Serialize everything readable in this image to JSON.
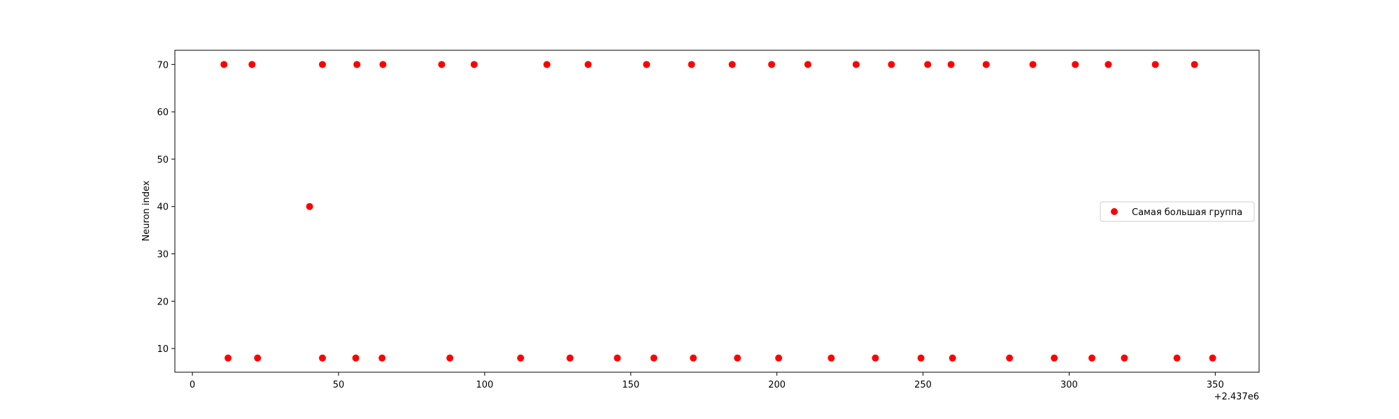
{
  "chart_data": {
    "type": "scatter",
    "title": "",
    "xlabel": "",
    "ylabel": "Neuron index",
    "x_offset_label": "+2.437e6",
    "xlim": [
      -6,
      365
    ],
    "ylim": [
      5,
      73
    ],
    "xticks": [
      0,
      50,
      100,
      150,
      200,
      250,
      300,
      350
    ],
    "xtick_labels": [
      "0",
      "50",
      "100",
      "150",
      "200",
      "250",
      "300",
      "350"
    ],
    "yticks": [
      10,
      20,
      30,
      40,
      50,
      60,
      70
    ],
    "ytick_labels": [
      "10",
      "20",
      "30",
      "40",
      "50",
      "60",
      "70"
    ],
    "grid": false,
    "legend_position": "center right",
    "series": [
      {
        "name": "Самая большая группа",
        "color": "#ff0000",
        "marker": "circle",
        "points": [
          [
            10.8,
            70
          ],
          [
            20.4,
            70
          ],
          [
            44.5,
            70
          ],
          [
            56.3,
            70
          ],
          [
            65.2,
            70
          ],
          [
            85.3,
            70
          ],
          [
            96.4,
            70
          ],
          [
            121.3,
            70
          ],
          [
            135.4,
            70
          ],
          [
            155.4,
            70
          ],
          [
            170.8,
            70
          ],
          [
            184.7,
            70
          ],
          [
            198.2,
            70
          ],
          [
            210.6,
            70
          ],
          [
            227.1,
            70
          ],
          [
            239.2,
            70
          ],
          [
            251.6,
            70
          ],
          [
            259.6,
            70
          ],
          [
            271.6,
            70
          ],
          [
            287.6,
            70
          ],
          [
            302.1,
            70
          ],
          [
            313.4,
            70
          ],
          [
            329.5,
            70
          ],
          [
            342.9,
            70
          ],
          [
            40.1,
            40
          ],
          [
            12.2,
            8
          ],
          [
            22.3,
            8
          ],
          [
            44.5,
            8
          ],
          [
            55.9,
            8
          ],
          [
            64.9,
            8
          ],
          [
            88.1,
            8
          ],
          [
            112.3,
            8
          ],
          [
            129.2,
            8
          ],
          [
            145.4,
            8
          ],
          [
            157.9,
            8
          ],
          [
            171.4,
            8
          ],
          [
            186.5,
            8
          ],
          [
            200.6,
            8
          ],
          [
            218.6,
            8
          ],
          [
            233.7,
            8
          ],
          [
            249.3,
            8
          ],
          [
            260.1,
            8
          ],
          [
            279.6,
            8
          ],
          [
            294.9,
            8
          ],
          [
            307.8,
            8
          ],
          [
            318.9,
            8
          ],
          [
            336.9,
            8
          ],
          [
            349.1,
            8
          ]
        ]
      }
    ]
  }
}
